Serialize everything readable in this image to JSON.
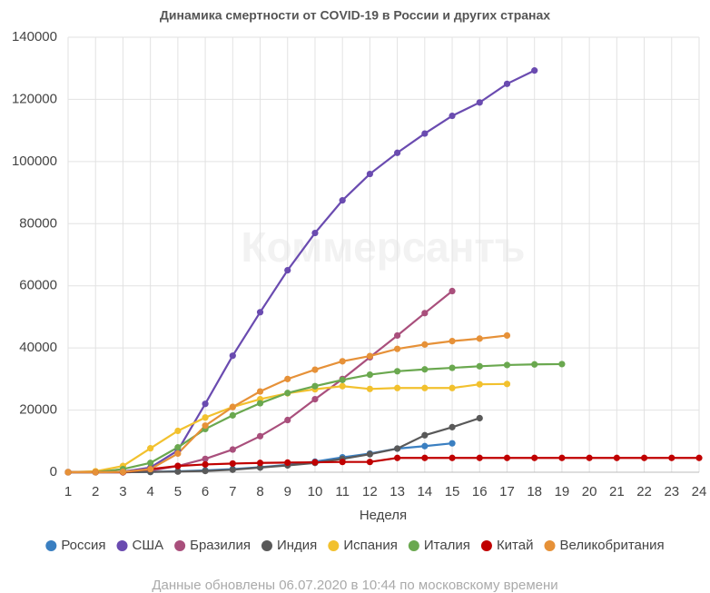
{
  "chart_data": {
    "type": "line",
    "title": "Динамика смертности от COVID-19 в России и других странах",
    "watermark": "Коммерсантъ",
    "x_label": "Неделя",
    "note": "Данные обновлены 06.07.2020 в 10:44 по московскому времени",
    "x": [
      1,
      2,
      3,
      4,
      5,
      6,
      7,
      8,
      9,
      10,
      11,
      12,
      13,
      14,
      15,
      16,
      17,
      18,
      19,
      20,
      21,
      22,
      23,
      24
    ],
    "xlim": [
      1,
      24
    ],
    "xticks": [
      1,
      2,
      3,
      4,
      5,
      6,
      7,
      8,
      9,
      10,
      11,
      12,
      13,
      14,
      15,
      16,
      17,
      18,
      19,
      20,
      21,
      22,
      23,
      24
    ],
    "ylim": [
      0,
      140000
    ],
    "yticks": [
      0,
      20000,
      40000,
      60000,
      80000,
      100000,
      120000,
      140000
    ],
    "grid": true,
    "legend": "bottom",
    "series": [
      {
        "name": "Россия",
        "color": "#3a7fc1",
        "values": [
          0,
          0,
          0,
          100,
          300,
          600,
          1000,
          1600,
          2400,
          3400,
          4800,
          6000,
          7600,
          8400,
          9300,
          null,
          null,
          null,
          null,
          null,
          null,
          null,
          null,
          null
        ]
      },
      {
        "name": "США",
        "color": "#6a4bb0",
        "values": [
          0,
          0,
          200,
          1500,
          7000,
          22000,
          37500,
          51500,
          65000,
          77000,
          87500,
          96000,
          102800,
          109000,
          114700,
          119000,
          125000,
          129300,
          null,
          null,
          null,
          null,
          null,
          null
        ]
      },
      {
        "name": "Бразилия",
        "color": "#a94f7c",
        "values": [
          0,
          0,
          0,
          500,
          2000,
          4300,
          7300,
          11600,
          16800,
          23500,
          30000,
          37000,
          44000,
          51200,
          58300,
          null,
          null,
          null,
          null,
          null,
          null,
          null,
          null,
          null
        ]
      },
      {
        "name": "Индия",
        "color": "#595959",
        "values": [
          0,
          0,
          0,
          100,
          200,
          400,
          800,
          1500,
          2200,
          3000,
          4300,
          5800,
          7600,
          11900,
          14500,
          17400,
          null,
          null,
          null,
          null,
          null,
          null,
          null,
          null
        ]
      },
      {
        "name": "Испания",
        "color": "#f2c12e",
        "values": [
          0,
          300,
          2000,
          7700,
          13300,
          17600,
          21000,
          23500,
          25400,
          26700,
          27700,
          26800,
          27100,
          27100,
          27100,
          28300,
          28400,
          null,
          null,
          null,
          null,
          null,
          null,
          null
        ]
      },
      {
        "name": "Италия",
        "color": "#6aa84f",
        "values": [
          0,
          0,
          1000,
          3000,
          8000,
          13900,
          18300,
          22200,
          25500,
          27700,
          29700,
          31400,
          32500,
          33100,
          33600,
          34100,
          34500,
          34700,
          34800,
          null,
          null,
          null,
          null,
          null
        ]
      },
      {
        "name": "Китай",
        "color": "#c00000",
        "values": [
          0,
          0,
          0,
          1000,
          2000,
          2500,
          2800,
          3000,
          3100,
          3200,
          3300,
          3300,
          4600,
          4600,
          4600,
          4600,
          4600,
          4600,
          4600,
          4600,
          4600,
          4600,
          4600,
          4600
        ]
      },
      {
        "name": "Великобритания",
        "color": "#e69138",
        "values": [
          0,
          0,
          100,
          1000,
          6000,
          15000,
          21000,
          26000,
          30000,
          33000,
          35700,
          37400,
          39700,
          41100,
          42200,
          43000,
          44000,
          null,
          null,
          null,
          null,
          null,
          null,
          null
        ]
      }
    ]
  }
}
